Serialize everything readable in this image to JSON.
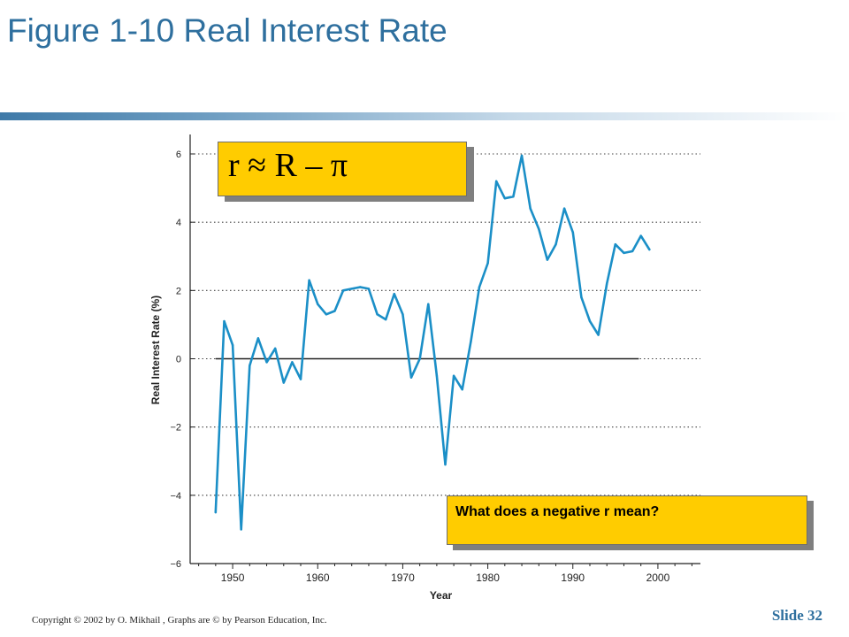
{
  "slide": {
    "title": "Figure 1-10  Real Interest Rate",
    "formula": "r ≈ R – π",
    "question": "What does a negative r mean?",
    "copyright": "Copyright © 2002 by O. Mikhail , Graphs are © by Pearson Education, Inc.",
    "slide_number": "Slide 32"
  },
  "colors": {
    "title": "#2e6f9e",
    "line": "#1b8fc7",
    "callout": "#ffcc00",
    "grid": "#444444"
  },
  "chart_data": {
    "type": "line",
    "xlabel": "Year",
    "ylabel": "Real Interest Rate (%)",
    "xlim": [
      1945,
      2005
    ],
    "ylim": [
      -6,
      6
    ],
    "x_ticks": [
      1950,
      1960,
      1970,
      1980,
      1990,
      2000
    ],
    "y_ticks": [
      6,
      4,
      2,
      0,
      -2,
      -4,
      -6
    ],
    "y_tick_labels": [
      "6",
      "4",
      "2",
      "0",
      "−2",
      "−4",
      "−6"
    ],
    "grid": "horizontal dotted",
    "zero_line": true,
    "series": [
      {
        "x": [
          1948,
          1949,
          1950,
          1951,
          1952,
          1953,
          1954,
          1955,
          1956,
          1957,
          1958,
          1959,
          1960,
          1961,
          1962,
          1963,
          1964,
          1965,
          1966,
          1967,
          1968,
          1969,
          1970,
          1971,
          1972,
          1973,
          1974,
          1975,
          1976,
          1977,
          1978,
          1979,
          1980,
          1981,
          1982,
          1983,
          1984,
          1985,
          1986,
          1987,
          1988,
          1989,
          1990,
          1991,
          1992,
          1993,
          1994,
          1995,
          1996,
          1997,
          1998,
          1999
        ],
        "y": [
          -4.5,
          1.1,
          0.4,
          -5.0,
          -0.2,
          0.6,
          -0.1,
          0.3,
          -0.7,
          -0.1,
          -0.6,
          2.3,
          1.6,
          1.3,
          1.4,
          2.0,
          2.05,
          2.1,
          2.05,
          1.3,
          1.15,
          1.9,
          1.3,
          -0.55,
          0.0,
          1.6,
          -0.5,
          -3.1,
          -0.5,
          -0.9,
          0.5,
          2.1,
          2.8,
          5.2,
          4.7,
          4.75,
          5.95,
          4.4,
          3.8,
          2.9,
          3.35,
          4.4,
          3.7,
          1.8,
          1.1,
          0.7,
          2.2,
          3.35,
          3.1,
          3.15,
          3.6,
          3.2
        ]
      }
    ]
  }
}
